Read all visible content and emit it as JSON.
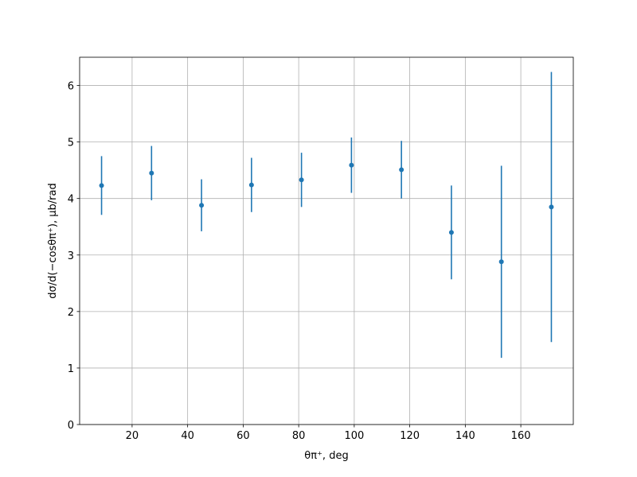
{
  "chart_data": {
    "type": "errorbar",
    "xlabel": "θπ⁺, deg",
    "ylabel": "dσ/d(−cosθπ⁺), μb/rad",
    "x": [
      9,
      27,
      45,
      63,
      81,
      99,
      117,
      135,
      153,
      171
    ],
    "series": [
      {
        "color": "#1f77b4",
        "values": [
          4.23,
          4.45,
          3.88,
          4.24,
          4.33,
          4.59,
          4.51,
          3.4,
          2.88,
          3.85
        ],
        "errors": [
          0.52,
          0.48,
          0.46,
          0.48,
          0.48,
          0.49,
          0.51,
          0.83,
          1.7,
          2.39
        ]
      }
    ],
    "xlim": [
      1.1,
      178.9
    ],
    "ylim": [
      0,
      6.5
    ],
    "xticks": [
      20,
      40,
      60,
      80,
      100,
      120,
      140,
      160
    ],
    "yticks": [
      0,
      1,
      2,
      3,
      4,
      5,
      6
    ],
    "grid": true
  }
}
